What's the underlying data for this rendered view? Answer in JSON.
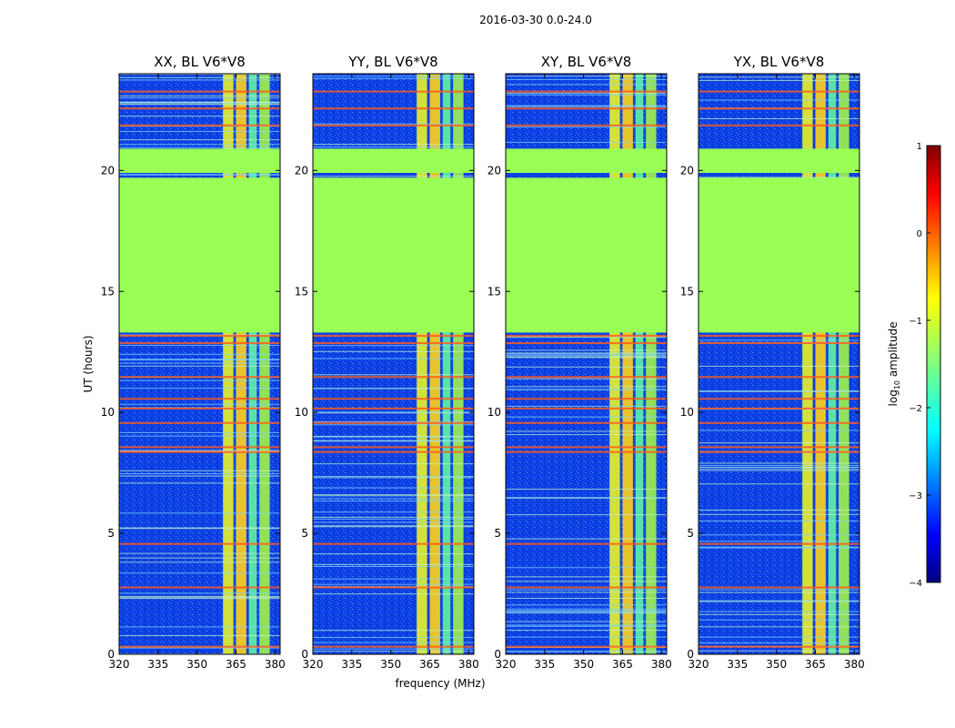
{
  "chart_data": {
    "type": "heatmap",
    "suptitle": "2016-03-30 0.0-24.0",
    "xlabel": "frequency (MHz)",
    "ylabel": "UT (hours)",
    "xlim": [
      320,
      382
    ],
    "ylim": [
      0,
      24
    ],
    "xticks": [
      "320",
      "335",
      "350",
      "365",
      "380"
    ],
    "yticks": [
      "0",
      "5",
      "10",
      "15",
      "20"
    ],
    "xtick_values": [
      320,
      335,
      350,
      365,
      380
    ],
    "ytick_values": [
      0,
      5,
      10,
      15,
      20
    ],
    "panels": [
      {
        "title": "XX, BL V6*V8",
        "key": "xx"
      },
      {
        "title": "YY, BL V6*V8",
        "key": "yy"
      },
      {
        "title": "XY, BL V6*V8",
        "key": "xy"
      },
      {
        "title": "YX, BL V6*V8",
        "key": "yx"
      }
    ],
    "flagged_ut_ranges": [
      [
        13.3,
        19.7
      ],
      [
        19.9,
        20.9
      ]
    ],
    "rfi_bands_mhz": [
      [
        360,
        364
      ],
      [
        365,
        369
      ],
      [
        370,
        373
      ],
      [
        374,
        378
      ]
    ],
    "colorbar": {
      "label": "log10 amplitude",
      "label_main": "log",
      "label_sub": "10",
      "label_rest": " amplitude",
      "range": [
        -4,
        1
      ],
      "ticks": [
        "−4",
        "−3",
        "−2",
        "−1",
        "0",
        "1"
      ],
      "tick_values": [
        -4,
        -3,
        -2,
        -1,
        0,
        1
      ],
      "colormap": "jet"
    }
  }
}
